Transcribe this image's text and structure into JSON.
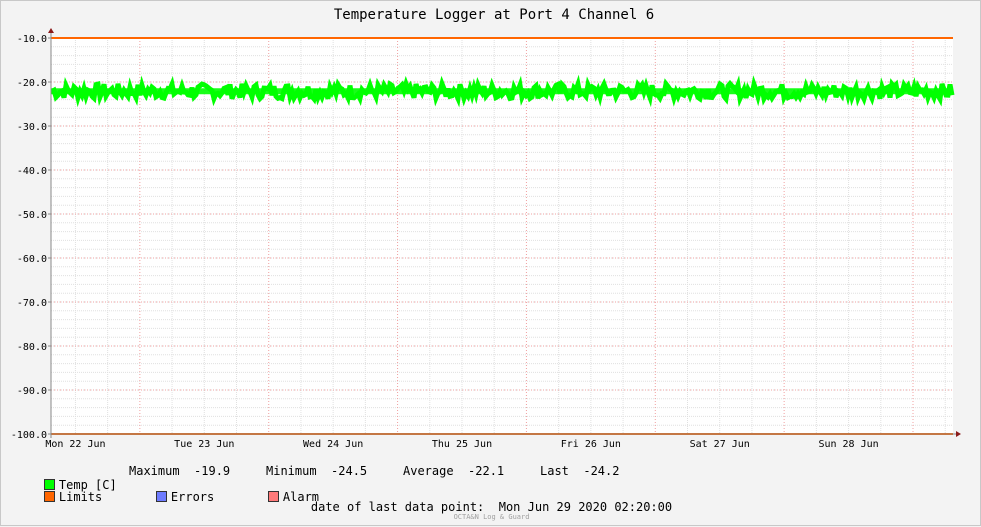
{
  "chart_data": {
    "type": "line",
    "title": "Temperature Logger at Port 4 Channel 6",
    "xlabel": "",
    "ylabel": "",
    "ylim": [
      -100,
      -10
    ],
    "yticks": [
      "-10.0",
      "-20.0",
      "-30.0",
      "-40.0",
      "-50.0",
      "-60.0",
      "-70.0",
      "-80.0",
      "-90.0",
      "-100.0"
    ],
    "ytick_values": [
      -10,
      -20,
      -30,
      -40,
      -50,
      -60,
      -70,
      -80,
      -90,
      -100
    ],
    "xticks": [
      "Mon 22 Jun",
      "Tue 23 Jun",
      "Wed 24 Jun",
      "Thu 25 Jun",
      "Fri 26 Jun",
      "Sat 27 Jun",
      "Sun 28 Jun"
    ],
    "grid": true,
    "series": [
      {
        "name": "Temp [C]",
        "color": "#00ff00",
        "band": [
          -24.5,
          -19.9
        ],
        "center": -22.1,
        "last": -24.2
      },
      {
        "name": "Limits",
        "color": "#ff6600",
        "values": [
          -10.0,
          -100.0
        ]
      }
    ],
    "legend_position": "bottom-left"
  },
  "legend": {
    "temp_label": "Temp [C]",
    "max_label": "Maximum",
    "max_value": "-19.9",
    "min_label": "Minimum",
    "min_value": "-24.5",
    "avg_label": "Average",
    "avg_value": "-22.1",
    "last_label": "Last",
    "last_value": "-24.2",
    "limits_label": "Limits",
    "errors_label": "Errors",
    "alarm_label": "Alarm"
  },
  "colors": {
    "temp": "#00ff00",
    "limits": "#ff6600",
    "errors": "#6e7bff",
    "alarm": "#ff7a7a"
  },
  "footer": {
    "last_point_label": "date of last data point:",
    "last_point_value": "Mon Jun 29 2020 02:20:00",
    "brand": "OCTA&N Log & Guard"
  }
}
